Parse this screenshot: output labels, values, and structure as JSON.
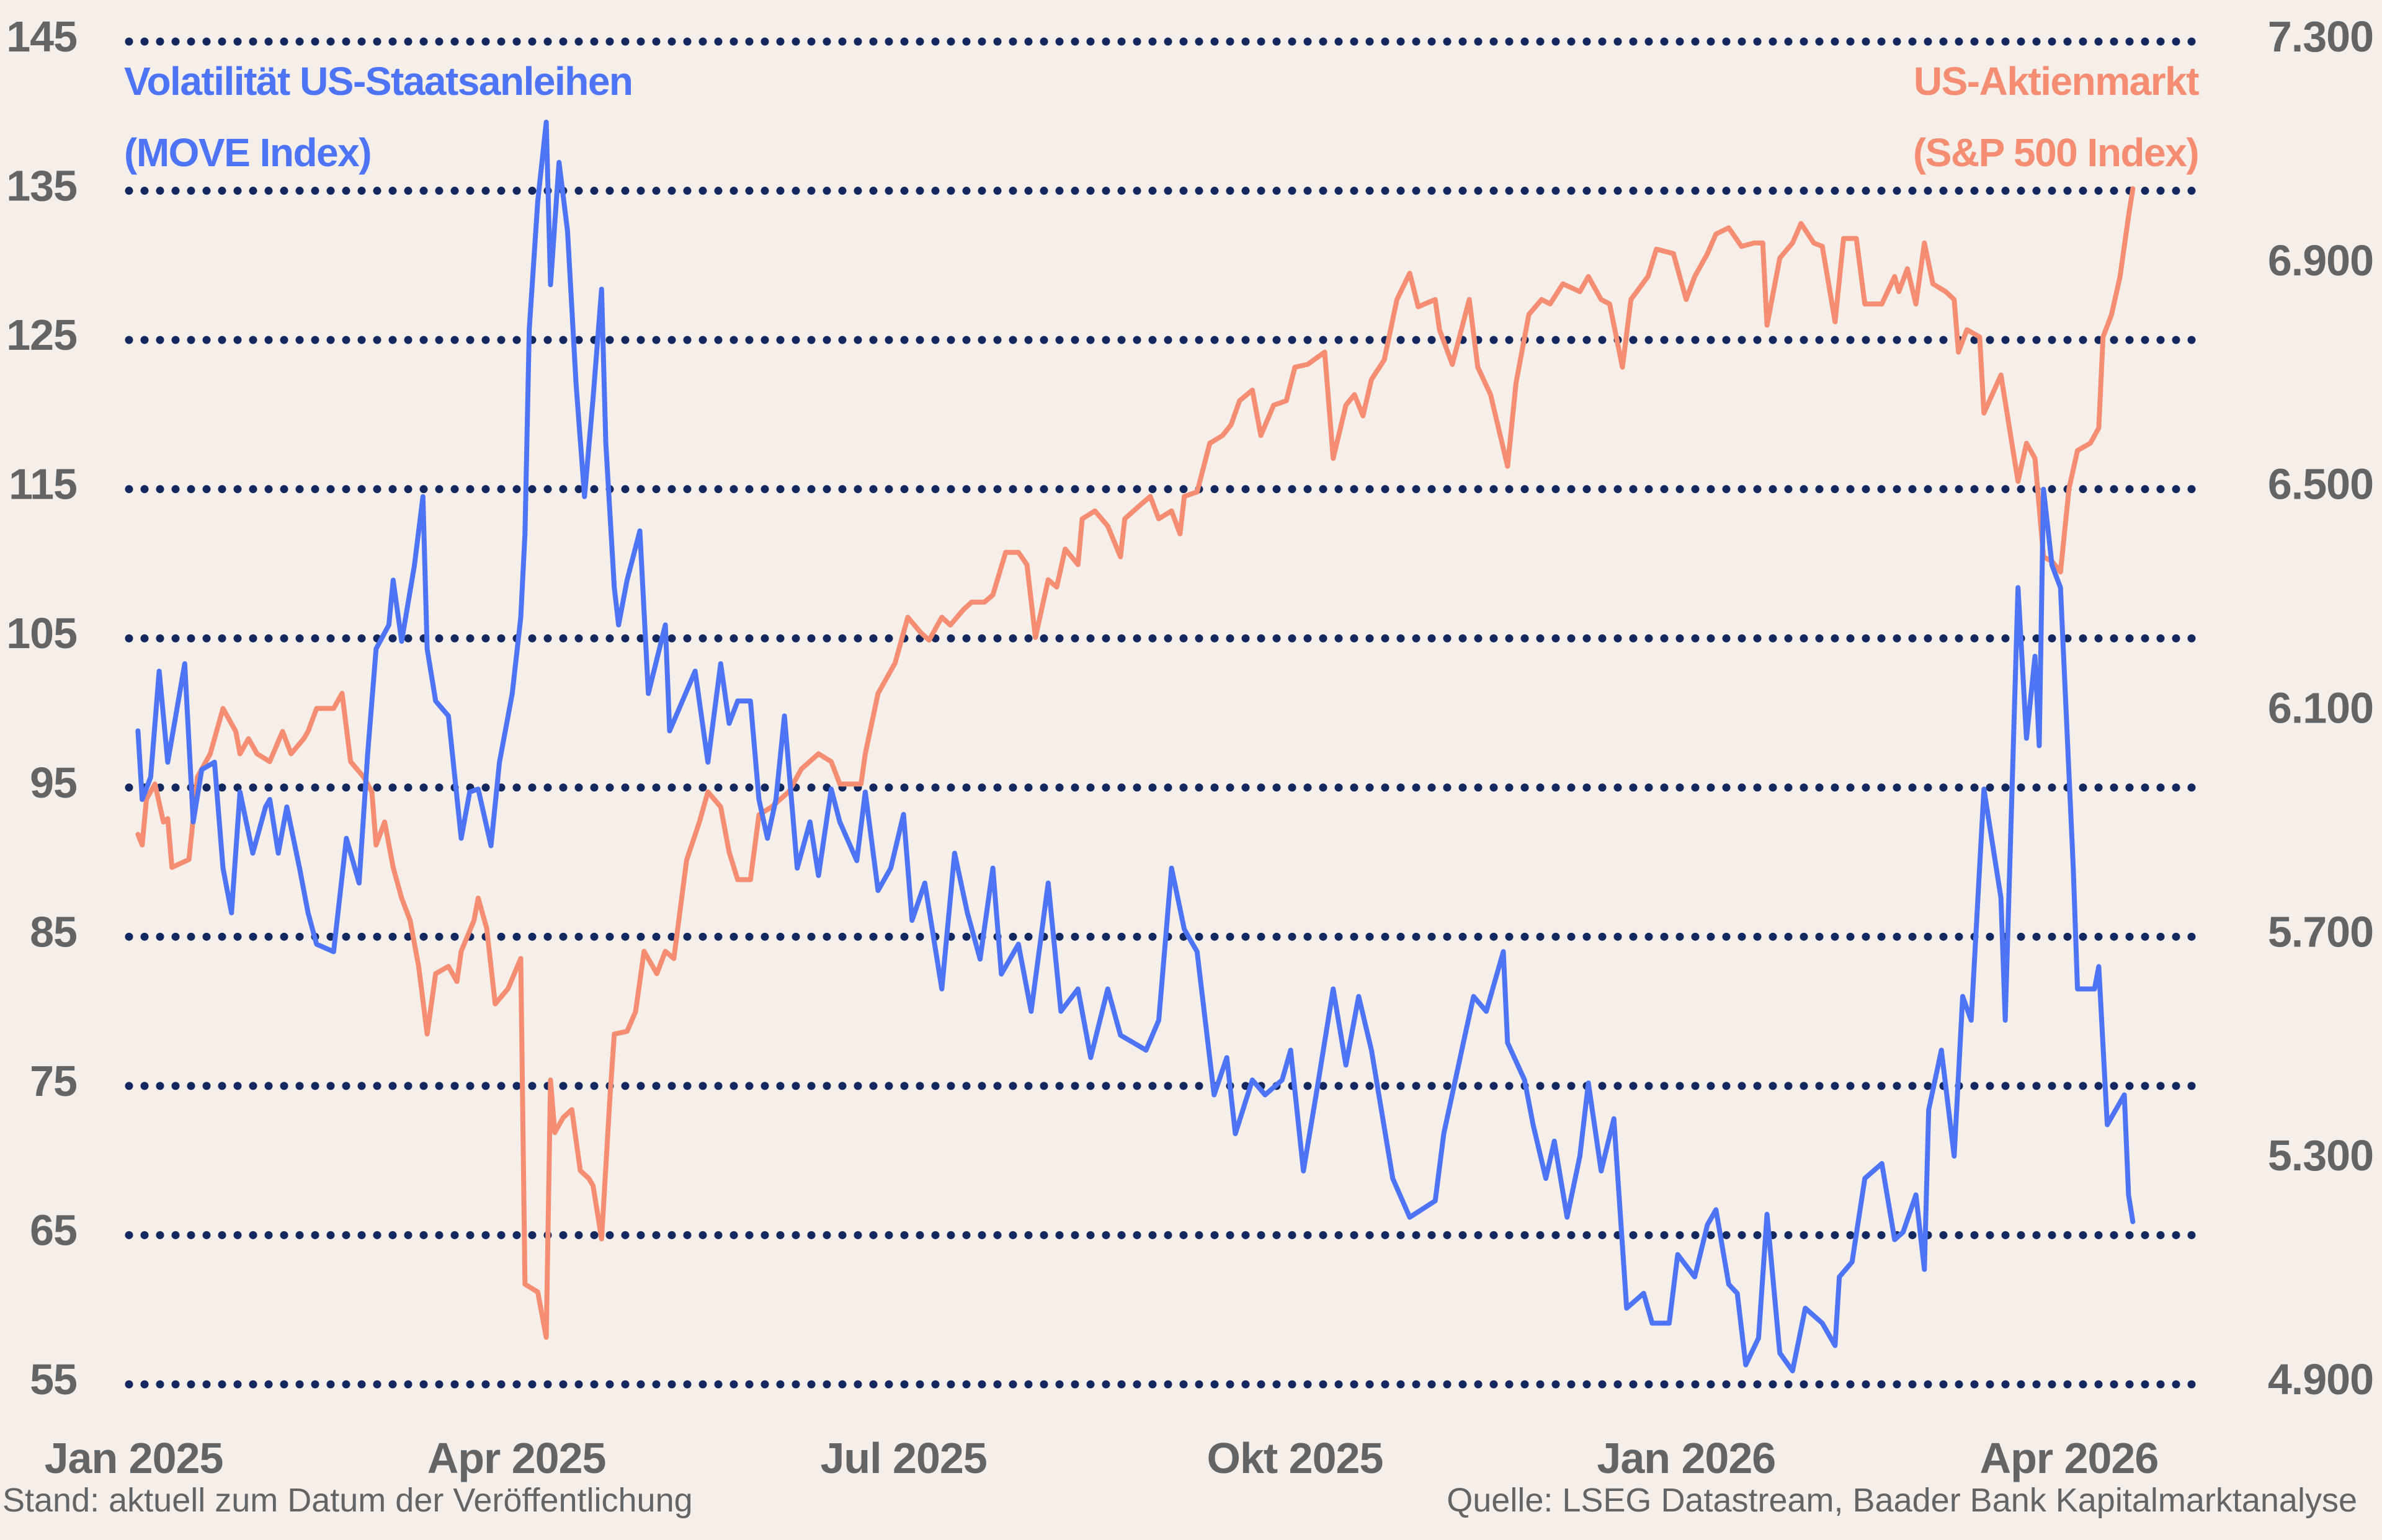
{
  "colors": {
    "move": "#4d74f5",
    "sp500": "#f58d72",
    "grid": "#13285e",
    "axis_text": "#646464",
    "background": "#f5eee9"
  },
  "footer": {
    "left": "Stand: aktuell zum Datum der Veröffentlichung",
    "right": "Quelle: LSEG Datastream, Baader Bank Kapitalmarktanalyse"
  },
  "chart_data": {
    "type": "line",
    "grid": true,
    "grid_style": "dotted horizontal",
    "x_axis": {
      "type": "date",
      "range": [
        "2025-01-01",
        "2026-04-20"
      ],
      "ticks": [
        {
          "date": "2025-01-01",
          "label": "Jan 2025"
        },
        {
          "date": "2025-04-01",
          "label": "Apr 2025"
        },
        {
          "date": "2025-07-01",
          "label": "Jul 2025"
        },
        {
          "date": "2025-10-01",
          "label": "Okt 2025"
        },
        {
          "date": "2026-01-01",
          "label": "Jan 2026"
        },
        {
          "date": "2026-04-01",
          "label": "Apr 2026"
        }
      ]
    },
    "y_left": {
      "range": [
        55,
        145
      ],
      "ticks": [
        145,
        135,
        125,
        115,
        105,
        95,
        85,
        75,
        65,
        55
      ],
      "tick_labels": [
        "145",
        "135",
        "125",
        "115",
        "105",
        "95",
        "85",
        "75",
        "65",
        "55"
      ]
    },
    "y_right": {
      "range": [
        4900,
        7300
      ],
      "ticks": [
        7300,
        6900,
        6500,
        6100,
        5700,
        5300,
        4900
      ],
      "tick_labels": [
        "7.300",
        "6.900",
        "6.500",
        "6.100",
        "5.700",
        "5.300",
        "4.900"
      ]
    },
    "series": [
      {
        "name": "Volatilität US-Staatsanleihen",
        "name_line2": "(MOVE Index)",
        "axis": "left",
        "color": "#4d74f5",
        "x": [
          "2025-01-02",
          "2025-01-03",
          "2025-01-05",
          "2025-01-07",
          "2025-01-09",
          "2025-01-13",
          "2025-01-15",
          "2025-01-17",
          "2025-01-20",
          "2025-01-22",
          "2025-01-24",
          "2025-01-26",
          "2025-01-29",
          "2025-02-01",
          "2025-02-02",
          "2025-02-04",
          "2025-02-06",
          "2025-02-09",
          "2025-02-11",
          "2025-02-13",
          "2025-02-17",
          "2025-02-20",
          "2025-02-23",
          "2025-02-25",
          "2025-02-27",
          "2025-03-02",
          "2025-03-03",
          "2025-03-05",
          "2025-03-08",
          "2025-03-10",
          "2025-03-11",
          "2025-03-13",
          "2025-03-16",
          "2025-03-19",
          "2025-03-21",
          "2025-03-23",
          "2025-03-26",
          "2025-03-28",
          "2025-03-31",
          "2025-04-02",
          "2025-04-03",
          "2025-04-04",
          "2025-04-06",
          "2025-04-08",
          "2025-04-09",
          "2025-04-11",
          "2025-04-13",
          "2025-04-15",
          "2025-04-17",
          "2025-04-19",
          "2025-04-21",
          "2025-04-22",
          "2025-04-24",
          "2025-04-25",
          "2025-04-27",
          "2025-04-30",
          "2025-05-02",
          "2025-05-06",
          "2025-05-07",
          "2025-05-10",
          "2025-05-13",
          "2025-05-16",
          "2025-05-19",
          "2025-05-21",
          "2025-05-23",
          "2025-05-26",
          "2025-05-28",
          "2025-05-30",
          "2025-06-01",
          "2025-06-03",
          "2025-06-06",
          "2025-06-09",
          "2025-06-11",
          "2025-06-14",
          "2025-06-16",
          "2025-06-20",
          "2025-06-22",
          "2025-06-25",
          "2025-06-28",
          "2025-07-01",
          "2025-07-03",
          "2025-07-06",
          "2025-07-10",
          "2025-07-13",
          "2025-07-16",
          "2025-07-19",
          "2025-07-22",
          "2025-07-24",
          "2025-07-28",
          "2025-07-31",
          "2025-08-04",
          "2025-08-07",
          "2025-08-11",
          "2025-08-14",
          "2025-08-18",
          "2025-08-21",
          "2025-08-24",
          "2025-08-27",
          "2025-08-30",
          "2025-09-02",
          "2025-09-05",
          "2025-09-08",
          "2025-09-12",
          "2025-09-15",
          "2025-09-17",
          "2025-09-21",
          "2025-09-24",
          "2025-09-28",
          "2025-09-30",
          "2025-10-03",
          "2025-10-06",
          "2025-10-10",
          "2025-10-13",
          "2025-10-16",
          "2025-10-19",
          "2025-10-24",
          "2025-10-28",
          "2025-11-03",
          "2025-11-05",
          "2025-11-10",
          "2025-11-12",
          "2025-11-15",
          "2025-11-19",
          "2025-11-20",
          "2025-11-24",
          "2025-11-26",
          "2025-11-29",
          "2025-12-01",
          "2025-12-04",
          "2025-12-07",
          "2025-12-09",
          "2025-12-12",
          "2025-12-15",
          "2025-12-18",
          "2025-12-22",
          "2025-12-24",
          "2025-12-28",
          "2025-12-30",
          "2026-01-03",
          "2026-01-06",
          "2026-01-08",
          "2026-01-11",
          "2026-01-13",
          "2026-01-15",
          "2026-01-18",
          "2026-01-20",
          "2026-01-23",
          "2026-01-26",
          "2026-01-29",
          "2026-02-02",
          "2026-02-05",
          "2026-02-06",
          "2026-02-09",
          "2026-02-12",
          "2026-02-16",
          "2026-02-19",
          "2026-02-21",
          "2026-02-24",
          "2026-02-26",
          "2026-02-27",
          "2026-03-02",
          "2026-03-05",
          "2026-03-07",
          "2026-03-09",
          "2026-03-12",
          "2026-03-16",
          "2026-03-17",
          "2026-03-20",
          "2026-03-22",
          "2026-03-24",
          "2026-03-25",
          "2026-03-26",
          "2026-03-28",
          "2026-03-30",
          "2026-04-02",
          "2026-04-03",
          "2026-04-07",
          "2026-04-08",
          "2026-04-10",
          "2026-04-14",
          "2026-04-15",
          "2026-04-16"
        ],
        "values": [
          98.8,
          94.2,
          95.7,
          102.8,
          96.7,
          103.3,
          92.7,
          96.2,
          96.7,
          89.6,
          86.6,
          94.7,
          90.6,
          93.7,
          94.2,
          90.6,
          93.7,
          89.6,
          86.6,
          84.5,
          84.0,
          91.6,
          88.6,
          97.2,
          104.3,
          105.9,
          108.9,
          104.8,
          109.9,
          114.5,
          104.3,
          100.8,
          99.8,
          91.6,
          94.7,
          94.9,
          91.1,
          96.7,
          101.3,
          106.4,
          112.0,
          125.7,
          134.3,
          139.6,
          128.7,
          136.9,
          132.3,
          122.1,
          114.5,
          121.1,
          128.4,
          118.1,
          108.4,
          105.9,
          108.9,
          112.2,
          101.3,
          105.9,
          98.8,
          100.8,
          102.8,
          96.7,
          103.3,
          99.3,
          100.8,
          100.8,
          94.2,
          91.6,
          94.2,
          99.8,
          89.6,
          92.7,
          89.1,
          94.9,
          92.7,
          90.1,
          94.7,
          88.1,
          89.6,
          93.2,
          86.1,
          88.6,
          81.5,
          90.6,
          86.6,
          83.5,
          89.6,
          82.5,
          84.5,
          80.0,
          88.6,
          80.0,
          81.5,
          76.9,
          81.5,
          78.4,
          77.9,
          77.4,
          79.4,
          89.6,
          85.5,
          84.0,
          74.4,
          76.9,
          71.8,
          75.4,
          74.4,
          75.4,
          77.4,
          69.3,
          74.4,
          81.5,
          76.4,
          81.0,
          77.4,
          68.8,
          66.2,
          67.3,
          71.8,
          78.4,
          81.0,
          80.0,
          84.0,
          77.9,
          75.4,
          72.4,
          68.8,
          71.3,
          66.2,
          70.3,
          75.2,
          69.3,
          72.8,
          60.1,
          61.1,
          59.1,
          59.1,
          63.7,
          62.2,
          65.7,
          66.7,
          61.7,
          61.1,
          56.3,
          58.1,
          66.4,
          57.1,
          55.9,
          60.1,
          59.1,
          57.6,
          62.2,
          63.2,
          68.8,
          69.8,
          64.7,
          65.2,
          67.7,
          62.7,
          73.4,
          77.4,
          70.3,
          81.0,
          79.4,
          94.9,
          87.6,
          79.4,
          108.4,
          98.3,
          103.8,
          97.8,
          115.0,
          109.9,
          108.4,
          89.6,
          81.5,
          81.5,
          83.0,
          72.4,
          74.4,
          67.7,
          65.9
        ]
      },
      {
        "name": "US-Aktienmarkt",
        "name_line2": "(S&P 500 Index)",
        "axis": "right",
        "color": "#f58d72",
        "x": [
          "2025-01-02",
          "2025-01-03",
          "2025-01-04",
          "2025-01-06",
          "2025-01-08",
          "2025-01-09",
          "2025-01-10",
          "2025-01-14",
          "2025-01-16",
          "2025-01-19",
          "2025-01-22",
          "2025-01-25",
          "2025-01-26",
          "2025-01-28",
          "2025-01-30",
          "2025-02-02",
          "2025-02-05",
          "2025-02-07",
          "2025-02-10",
          "2025-02-11",
          "2025-02-13",
          "2025-02-17",
          "2025-02-19",
          "2025-02-21",
          "2025-02-24",
          "2025-02-26",
          "2025-02-27",
          "2025-03-01",
          "2025-03-03",
          "2025-03-05",
          "2025-03-07",
          "2025-03-09",
          "2025-03-11",
          "2025-03-13",
          "2025-03-16",
          "2025-03-18",
          "2025-03-19",
          "2025-03-22",
          "2025-03-23",
          "2025-03-25",
          "2025-03-27",
          "2025-03-30",
          "2025-04-02",
          "2025-04-03",
          "2025-04-06",
          "2025-04-08",
          "2025-04-09",
          "2025-04-10",
          "2025-04-12",
          "2025-04-14",
          "2025-04-16",
          "2025-04-18",
          "2025-04-19",
          "2025-04-21",
          "2025-04-23",
          "2025-04-24",
          "2025-04-27",
          "2025-04-29",
          "2025-05-01",
          "2025-05-04",
          "2025-05-06",
          "2025-05-08",
          "2025-05-11",
          "2025-05-14",
          "2025-05-16",
          "2025-05-19",
          "2025-05-21",
          "2025-05-23",
          "2025-05-26",
          "2025-05-28",
          "2025-05-31",
          "2025-06-04",
          "2025-06-07",
          "2025-06-11",
          "2025-06-14",
          "2025-06-16",
          "2025-06-18",
          "2025-06-21",
          "2025-06-22",
          "2025-06-25",
          "2025-06-29",
          "2025-07-02",
          "2025-07-05",
          "2025-07-07",
          "2025-07-10",
          "2025-07-12",
          "2025-07-15",
          "2025-07-17",
          "2025-07-20",
          "2025-07-22",
          "2025-07-25",
          "2025-07-28",
          "2025-07-30",
          "2025-08-01",
          "2025-08-04",
          "2025-08-06",
          "2025-08-08",
          "2025-08-11",
          "2025-08-12",
          "2025-08-15",
          "2025-08-18",
          "2025-08-21",
          "2025-08-22",
          "2025-08-26",
          "2025-08-28",
          "2025-08-30",
          "2025-09-02",
          "2025-09-04",
          "2025-09-05",
          "2025-09-08",
          "2025-09-11",
          "2025-09-14",
          "2025-09-16",
          "2025-09-18",
          "2025-09-21",
          "2025-09-23",
          "2025-09-26",
          "2025-09-29",
          "2025-10-01",
          "2025-10-04",
          "2025-10-08",
          "2025-10-10",
          "2025-10-13",
          "2025-10-15",
          "2025-10-17",
          "2025-10-19",
          "2025-10-22",
          "2025-10-25",
          "2025-10-28",
          "2025-10-30",
          "2025-11-03",
          "2025-11-04",
          "2025-11-07",
          "2025-11-11",
          "2025-11-13",
          "2025-11-16",
          "2025-11-20",
          "2025-11-22",
          "2025-11-25",
          "2025-11-28",
          "2025-11-30",
          "2025-12-03",
          "2025-12-07",
          "2025-12-09",
          "2025-12-12",
          "2025-12-14",
          "2025-12-17",
          "2025-12-19",
          "2025-12-23",
          "2025-12-25",
          "2025-12-29",
          "2026-01-01",
          "2026-01-03",
          "2026-01-06",
          "2026-01-08",
          "2026-01-11",
          "2026-01-14",
          "2026-01-17",
          "2026-01-19",
          "2026-01-20",
          "2026-01-23",
          "2026-01-26",
          "2026-01-28",
          "2026-01-31",
          "2026-02-02",
          "2026-02-05",
          "2026-02-07",
          "2026-02-10",
          "2026-02-12",
          "2026-02-16",
          "2026-02-19",
          "2026-02-20",
          "2026-02-22",
          "2026-02-24",
          "2026-02-26",
          "2026-02-28",
          "2026-03-03",
          "2026-03-05",
          "2026-03-06",
          "2026-03-08",
          "2026-03-11",
          "2026-03-12",
          "2026-03-16",
          "2026-03-18",
          "2026-03-20",
          "2026-03-22",
          "2026-03-24",
          "2026-03-26",
          "2026-03-28",
          "2026-03-30",
          "2026-04-01",
          "2026-04-03",
          "2026-04-06",
          "2026-04-08",
          "2026-04-09",
          "2026-04-11",
          "2026-04-13",
          "2026-04-15",
          "2026-04-16"
        ],
        "values": [
          5883,
          5864,
          5946,
          5973,
          5905,
          5911,
          5824,
          5838,
          5986,
          6027,
          6108,
          6067,
          6027,
          6054,
          6027,
          6013,
          6067,
          6027,
          6054,
          6067,
          6108,
          6108,
          6135,
          6013,
          5986,
          5959,
          5864,
          5905,
          5824,
          5769,
          5729,
          5647,
          5526,
          5634,
          5647,
          5620,
          5674,
          5729,
          5769,
          5715,
          5580,
          5607,
          5661,
          5079,
          5065,
          4984,
          5444,
          5350,
          5377,
          5391,
          5282,
          5268,
          5255,
          5160,
          5417,
          5526,
          5531,
          5566,
          5674,
          5634,
          5674,
          5661,
          5837,
          5905,
          5959,
          5932,
          5851,
          5802,
          5802,
          5918,
          5932,
          5959,
          6000,
          6027,
          6013,
          5973,
          5973,
          5973,
          6027,
          6135,
          6189,
          6271,
          6244,
          6230,
          6271,
          6257,
          6284,
          6298,
          6298,
          6311,
          6387,
          6387,
          6365,
          6235,
          6338,
          6325,
          6393,
          6365,
          6447,
          6461,
          6434,
          6379,
          6447,
          6474,
          6487,
          6447,
          6461,
          6420,
          6487,
          6495,
          6582,
          6596,
          6615,
          6658,
          6677,
          6596,
          6650,
          6658,
          6718,
          6723,
          6745,
          6555,
          6650,
          6669,
          6631,
          6696,
          6731,
          6839,
          6886,
          6826,
          6839,
          6785,
          6723,
          6839,
          6718,
          6669,
          6541,
          6690,
          6812,
          6839,
          6831,
          6867,
          6853,
          6880,
          6839,
          6831,
          6718,
          6839,
          6880,
          6929,
          6921,
          6839,
          6880,
          6921,
          6956,
          6967,
          6934,
          6940,
          6940,
          6793,
          6913,
          6940,
          6975,
          6940,
          6934,
          6799,
          6948,
          6948,
          6831,
          6831,
          6880,
          6853,
          6894,
          6831,
          6940,
          6867,
          6853,
          6839,
          6745,
          6785,
          6772,
          6636,
          6704,
          6609,
          6514,
          6582,
          6555,
          6379,
          6371,
          6352,
          6501,
          6569,
          6582,
          6609,
          6772,
          6812,
          6880,
          6988,
          7037
        ]
      }
    ]
  }
}
